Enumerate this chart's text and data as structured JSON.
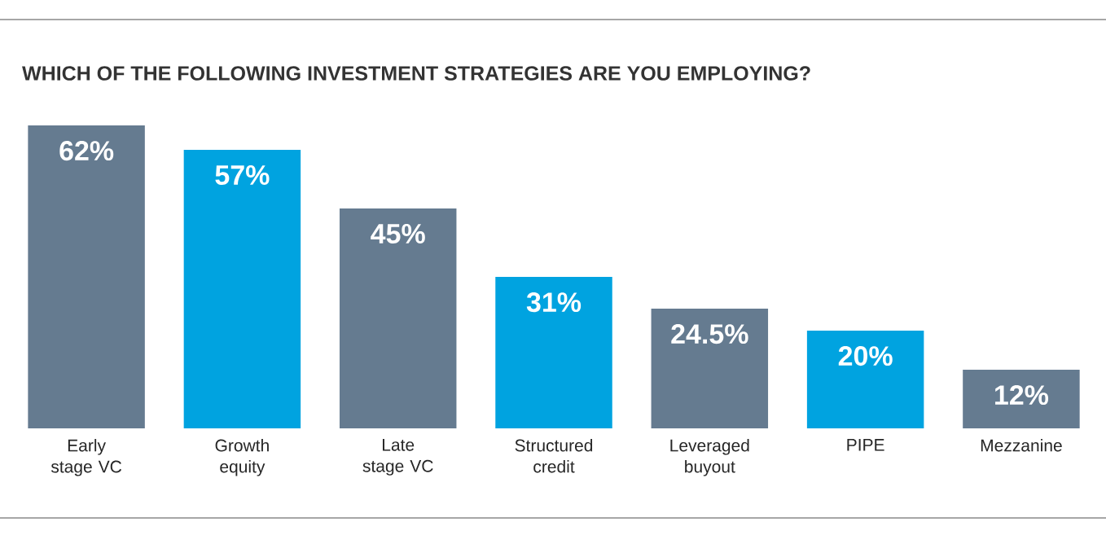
{
  "chart_data": {
    "type": "bar",
    "title": "WHICH OF THE FOLLOWING INVESTMENT STRATEGIES ARE YOU EMPLOYING?",
    "categories": [
      "Early stage VC",
      "Growth equity",
      "Late stage VC",
      "Structured credit",
      "Leveraged buyout",
      "PIPE",
      "Mezzanine"
    ],
    "values": [
      62,
      57,
      45,
      31,
      24.5,
      20,
      12
    ],
    "value_labels": [
      "62%",
      "57%",
      "45%",
      "31%",
      "24.5%",
      "20%",
      "12%"
    ],
    "colors": [
      "#657b90",
      "#00a3e0",
      "#657b90",
      "#00a3e0",
      "#657b90",
      "#00a3e0",
      "#657b90"
    ]
  }
}
